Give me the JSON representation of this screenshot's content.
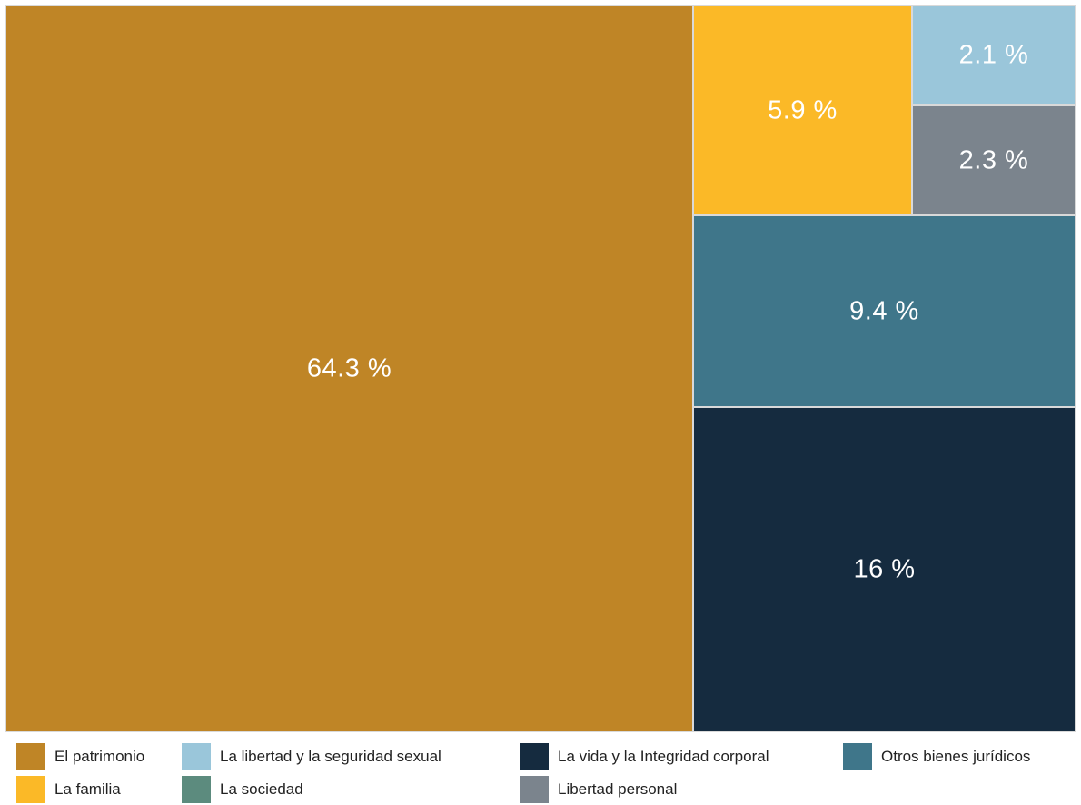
{
  "chart_data": {
    "type": "treemap",
    "title": "",
    "unit": "%",
    "items": [
      {
        "name": "El patrimonio",
        "value": 64.3,
        "label": "64.3 %",
        "color": "#BF8526"
      },
      {
        "name": "La vida y la Integridad corporal",
        "value": 16,
        "label": "16 %",
        "color": "#152B3F"
      },
      {
        "name": "Otros bienes jurídicos",
        "value": 9.4,
        "label": "9.4 %",
        "color": "#3F768A"
      },
      {
        "name": "La familia",
        "value": 5.9,
        "label": "5.9 %",
        "color": "#FBB927"
      },
      {
        "name": "Libertad personal",
        "value": 2.3,
        "label": "2.3 %",
        "color": "#7B848D"
      },
      {
        "name": "La libertad y la seguridad sexual",
        "value": 2.1,
        "label": "2.1 %",
        "color": "#9AC6DA"
      },
      {
        "name": "La sociedad",
        "value": null,
        "label": "",
        "color": "#5C8B7E"
      }
    ],
    "legend": {
      "position": "bottom",
      "rows": [
        [
          "El patrimonio",
          "La libertad y la seguridad sexual",
          "La vida y la Integridad corporal",
          "Otros bienes jurídicos"
        ],
        [
          "La familia",
          "La sociedad",
          "Libertad personal"
        ]
      ]
    }
  }
}
